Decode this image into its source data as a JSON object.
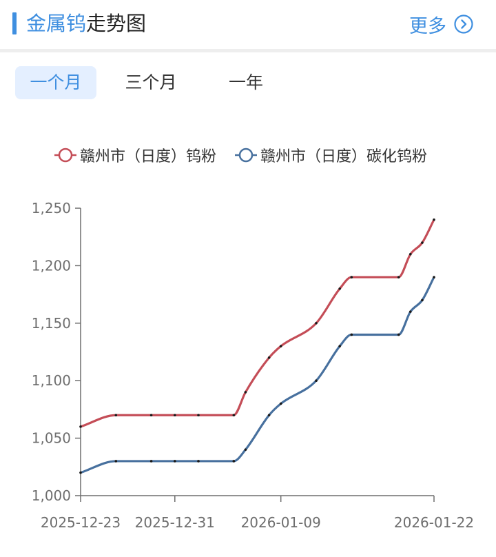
{
  "header": {
    "title_accent": "金属钨",
    "title_rest": "走势图",
    "more_label": "更多",
    "more_icon": "chevron-right-circle-icon",
    "accent_color": "#3f8fe0"
  },
  "tabs": [
    {
      "label": "一个月",
      "active": true
    },
    {
      "label": "三个月",
      "active": false
    },
    {
      "label": "一年",
      "active": false
    }
  ],
  "chart_data": {
    "type": "line",
    "title": "",
    "xlabel": "",
    "ylabel": "",
    "ylim": [
      1000,
      1250
    ],
    "yticks": [
      1000,
      1050,
      1100,
      1150,
      1200,
      1250
    ],
    "ytick_labels": [
      "1,000",
      "1,050",
      "1,100",
      "1,150",
      "1,200",
      "1,250"
    ],
    "x": [
      "2025-12-23",
      "2025-12-26",
      "2025-12-29",
      "2025-12-31",
      "2026-01-02",
      "2026-01-05",
      "2026-01-06",
      "2026-01-08",
      "2026-01-09",
      "2026-01-12",
      "2026-01-14",
      "2026-01-15",
      "2026-01-19",
      "2026-01-20",
      "2026-01-21",
      "2026-01-22"
    ],
    "x_tick_labels": [
      "2025-12-23",
      "2025-12-31",
      "2026-01-09",
      "2026-01-22"
    ],
    "legend_position": "top",
    "grid": false,
    "smooth": true,
    "series": [
      {
        "name": "赣州市（日度）钨粉",
        "color": "#c44d57",
        "values": [
          1060,
          1070,
          1070,
          1070,
          1070,
          1070,
          1090,
          1120,
          1130,
          1150,
          1180,
          1190,
          1190,
          1210,
          1220,
          1240
        ]
      },
      {
        "name": "赣州市（日度）碳化钨粉",
        "color": "#47709e",
        "values": [
          1020,
          1030,
          1030,
          1030,
          1030,
          1030,
          1040,
          1070,
          1080,
          1100,
          1130,
          1140,
          1140,
          1160,
          1170,
          1190
        ]
      }
    ]
  }
}
